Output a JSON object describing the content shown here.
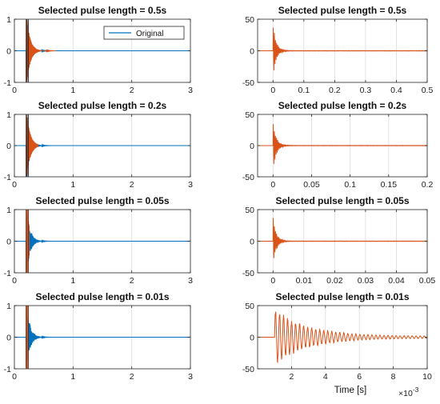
{
  "chart_data": [
    {
      "type": "line",
      "title": "Selected pulse length = 0.5s",
      "xlim": [
        0,
        3
      ],
      "ylim": [
        -1,
        1
      ],
      "xticks": [
        0,
        1,
        2,
        3
      ],
      "yticks": [
        -1,
        0,
        1
      ],
      "pulse_length": 0.5,
      "legend": {
        "entries": [
          "Original"
        ],
        "placement": "top-right"
      },
      "grid": "x"
    },
    {
      "type": "line",
      "title": "Selected pulse length = 0.5s",
      "xlim": [
        -0.05,
        0.5
      ],
      "ylim": [
        -50,
        50
      ],
      "xticks": [
        0,
        0.1,
        0.2,
        0.3,
        0.4,
        0.5
      ],
      "yticks": [
        -50,
        0,
        50
      ],
      "grid": "x"
    },
    {
      "type": "line",
      "title": "Selected pulse length = 0.2s",
      "xlim": [
        0,
        3
      ],
      "ylim": [
        -1,
        1
      ],
      "xticks": [
        0,
        1,
        2,
        3
      ],
      "yticks": [
        -1,
        0,
        1
      ],
      "pulse_length": 0.2,
      "grid": "x"
    },
    {
      "type": "line",
      "title": "Selected pulse length = 0.2s",
      "xlim": [
        -0.02,
        0.2
      ],
      "ylim": [
        -50,
        50
      ],
      "xticks": [
        0,
        0.05,
        0.1,
        0.15,
        0.2
      ],
      "yticks": [
        -50,
        0,
        50
      ],
      "grid": "x"
    },
    {
      "type": "line",
      "title": "Selected pulse length = 0.05s",
      "xlim": [
        0,
        3
      ],
      "ylim": [
        -1,
        1
      ],
      "xticks": [
        0,
        1,
        2,
        3
      ],
      "yticks": [
        -1,
        0,
        1
      ],
      "pulse_length": 0.05,
      "grid": "x"
    },
    {
      "type": "line",
      "title": "Selected pulse length = 0.05s",
      "xlim": [
        -0.005,
        0.05
      ],
      "ylim": [
        -50,
        50
      ],
      "xticks": [
        0,
        0.01,
        0.02,
        0.03,
        0.04,
        0.05
      ],
      "yticks": [
        -50,
        0,
        50
      ],
      "grid": "x"
    },
    {
      "type": "line",
      "title": "Selected pulse length = 0.01s",
      "xlim": [
        0,
        3
      ],
      "ylim": [
        -1,
        1
      ],
      "xticks": [
        0,
        1,
        2,
        3
      ],
      "yticks": [
        -1,
        0,
        1
      ],
      "pulse_length": 0.01,
      "grid": "x"
    },
    {
      "type": "line",
      "title": "Selected pulse length = 0.01s",
      "xlim": [
        0,
        10
      ],
      "ylim": [
        -50,
        50
      ],
      "xticks": [
        2,
        4,
        6,
        8,
        10
      ],
      "yticks": [
        -50,
        0,
        50
      ],
      "xlabel": "Time [s]",
      "x_multiplier": "×10",
      "x_exponent": "-3",
      "grid": "x"
    }
  ],
  "colors": {
    "original": "#0072BD",
    "selected": "#D95319",
    "grid": "#dcdcdc"
  }
}
